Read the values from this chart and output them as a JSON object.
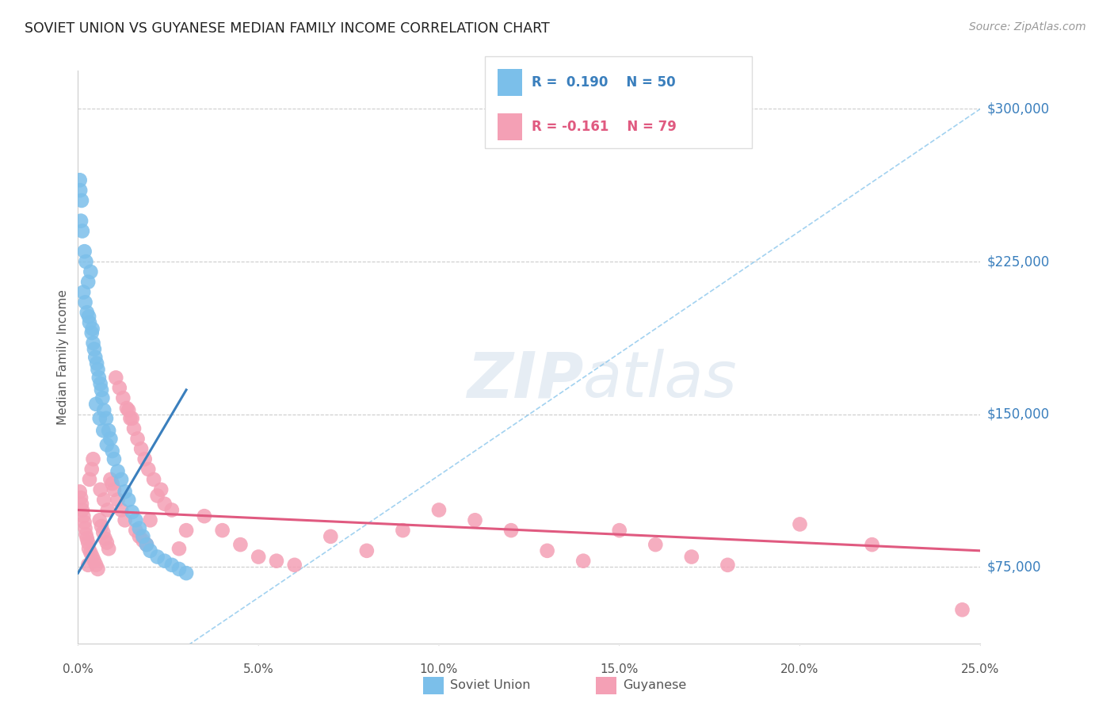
{
  "title": "SOVIET UNION VS GUYANESE MEDIAN FAMILY INCOME CORRELATION CHART",
  "source": "Source: ZipAtlas.com",
  "ylabel": "Median Family Income",
  "xmin": 0.0,
  "xmax": 25.0,
  "ymin": 37500,
  "ymax": 318750,
  "yticks": [
    75000,
    150000,
    225000,
    300000
  ],
  "ytick_labels": [
    "$75,000",
    "$150,000",
    "$225,000",
    "$300,000"
  ],
  "xtick_positions": [
    0,
    5,
    10,
    15,
    20,
    25
  ],
  "xtick_labels": [
    "0.0%",
    "5.0%",
    "10.0%",
    "15.0%",
    "20.0%",
    "25.0%"
  ],
  "grid_color": "#cccccc",
  "background_color": "#ffffff",
  "blue_color": "#7bbfea",
  "blue_dark": "#3a7fbd",
  "pink_color": "#f4a0b5",
  "pink_dark": "#e05a80",
  "label_soviet": "Soviet Union",
  "label_guyanese": "Guyanese",
  "soviet_x": [
    0.08,
    0.12,
    0.18,
    0.22,
    0.28,
    0.15,
    0.2,
    0.25,
    0.32,
    0.38,
    0.42,
    0.48,
    0.55,
    0.62,
    0.68,
    0.72,
    0.78,
    0.85,
    0.9,
    0.95,
    1.0,
    1.1,
    1.2,
    1.3,
    1.4,
    1.5,
    1.6,
    1.7,
    1.8,
    1.9,
    2.0,
    2.2,
    2.4,
    2.6,
    2.8,
    3.0,
    0.05,
    0.06,
    0.1,
    0.45,
    0.52,
    0.58,
    0.65,
    0.35,
    0.3,
    0.4,
    0.5,
    0.6,
    0.7,
    0.8
  ],
  "soviet_y": [
    245000,
    240000,
    230000,
    225000,
    215000,
    210000,
    205000,
    200000,
    195000,
    190000,
    185000,
    178000,
    172000,
    165000,
    158000,
    152000,
    148000,
    142000,
    138000,
    132000,
    128000,
    122000,
    118000,
    112000,
    108000,
    102000,
    98000,
    94000,
    90000,
    86000,
    83000,
    80000,
    78000,
    76000,
    74000,
    72000,
    265000,
    260000,
    255000,
    182000,
    175000,
    168000,
    162000,
    220000,
    198000,
    192000,
    155000,
    148000,
    142000,
    135000
  ],
  "guyanese_x": [
    0.05,
    0.08,
    0.1,
    0.12,
    0.15,
    0.18,
    0.2,
    0.22,
    0.25,
    0.28,
    0.3,
    0.35,
    0.4,
    0.45,
    0.5,
    0.55,
    0.6,
    0.65,
    0.7,
    0.75,
    0.8,
    0.85,
    0.9,
    0.95,
    1.0,
    1.1,
    1.2,
    1.3,
    1.4,
    1.5,
    1.6,
    1.7,
    1.8,
    1.9,
    2.0,
    2.2,
    2.4,
    2.6,
    2.8,
    3.0,
    3.5,
    4.0,
    4.5,
    5.0,
    5.5,
    6.0,
    7.0,
    8.0,
    9.0,
    10.0,
    11.0,
    12.0,
    13.0,
    14.0,
    15.0,
    16.0,
    17.0,
    18.0,
    20.0,
    22.0,
    0.42,
    0.38,
    0.32,
    0.62,
    0.72,
    0.82,
    1.05,
    1.15,
    1.25,
    1.35,
    1.45,
    1.55,
    1.65,
    1.75,
    1.85,
    1.95,
    2.1,
    2.3,
    24.5,
    0.28
  ],
  "guyanese_y": [
    112000,
    109000,
    106000,
    103000,
    100000,
    97000,
    94000,
    91000,
    89000,
    87000,
    84000,
    82000,
    80000,
    78000,
    76000,
    74000,
    98000,
    95000,
    92000,
    89000,
    87000,
    84000,
    118000,
    116000,
    113000,
    108000,
    103000,
    98000,
    152000,
    148000,
    93000,
    90000,
    88000,
    86000,
    98000,
    110000,
    106000,
    103000,
    84000,
    93000,
    100000,
    93000,
    86000,
    80000,
    78000,
    76000,
    90000,
    83000,
    93000,
    103000,
    98000,
    93000,
    83000,
    78000,
    93000,
    86000,
    80000,
    76000,
    96000,
    86000,
    128000,
    123000,
    118000,
    113000,
    108000,
    103000,
    168000,
    163000,
    158000,
    153000,
    148000,
    143000,
    138000,
    133000,
    128000,
    123000,
    118000,
    113000,
    54000,
    76000
  ],
  "blue_line_x": [
    0.0,
    3.0
  ],
  "blue_line_y": [
    72000,
    162000
  ],
  "pink_line_x": [
    0.0,
    25.0
  ],
  "pink_line_y": [
    103000,
    83000
  ],
  "dashed_line_x": [
    0.0,
    25.0
  ],
  "dashed_line_y": [
    0,
    300000
  ]
}
